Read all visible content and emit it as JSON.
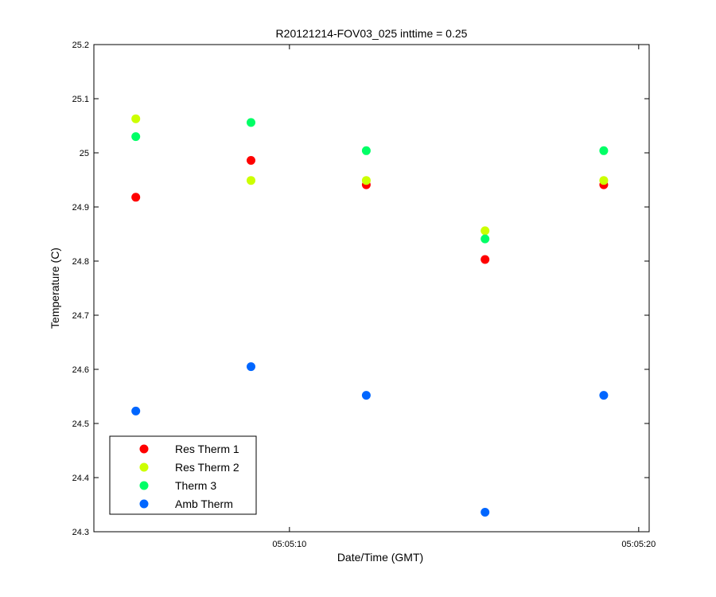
{
  "chart_data": {
    "type": "scatter",
    "title": "R20121214-FOV03_025 inttime = 0.25",
    "xlabel": "Date/Time (GMT)",
    "ylabel": "Temperature (C)",
    "xlim": [
      "05:05:04.4",
      "05:05:20.3"
    ],
    "ylim": [
      24.3,
      25.2
    ],
    "x_ticks": [
      "05:05:10",
      "05:05:20"
    ],
    "y_ticks": [
      "24.3",
      "24.4",
      "24.5",
      "24.6",
      "24.7",
      "24.8",
      "24.9",
      "25",
      "25.1",
      "25.2"
    ],
    "grid": false,
    "legend_position": "bottom-left",
    "x": [
      "05:05:05.6",
      "05:05:08.9",
      "05:05:12.2",
      "05:05:15.6",
      "05:05:19.0"
    ],
    "series": [
      {
        "name": "Res Therm 1",
        "color": "#ff0000",
        "values": [
          24.918,
          24.986,
          24.941,
          24.803,
          24.941
        ]
      },
      {
        "name": "Res Therm 2",
        "color": "#ccff00",
        "values": [
          25.063,
          24.949,
          24.949,
          24.856,
          24.949
        ]
      },
      {
        "name": "Therm 3",
        "color": "#00ff66",
        "values": [
          25.03,
          25.056,
          25.004,
          24.841,
          25.004
        ]
      },
      {
        "name": "Amb Therm",
        "color": "#0066ff",
        "values": [
          24.523,
          24.605,
          24.552,
          24.336,
          24.552
        ]
      }
    ]
  }
}
